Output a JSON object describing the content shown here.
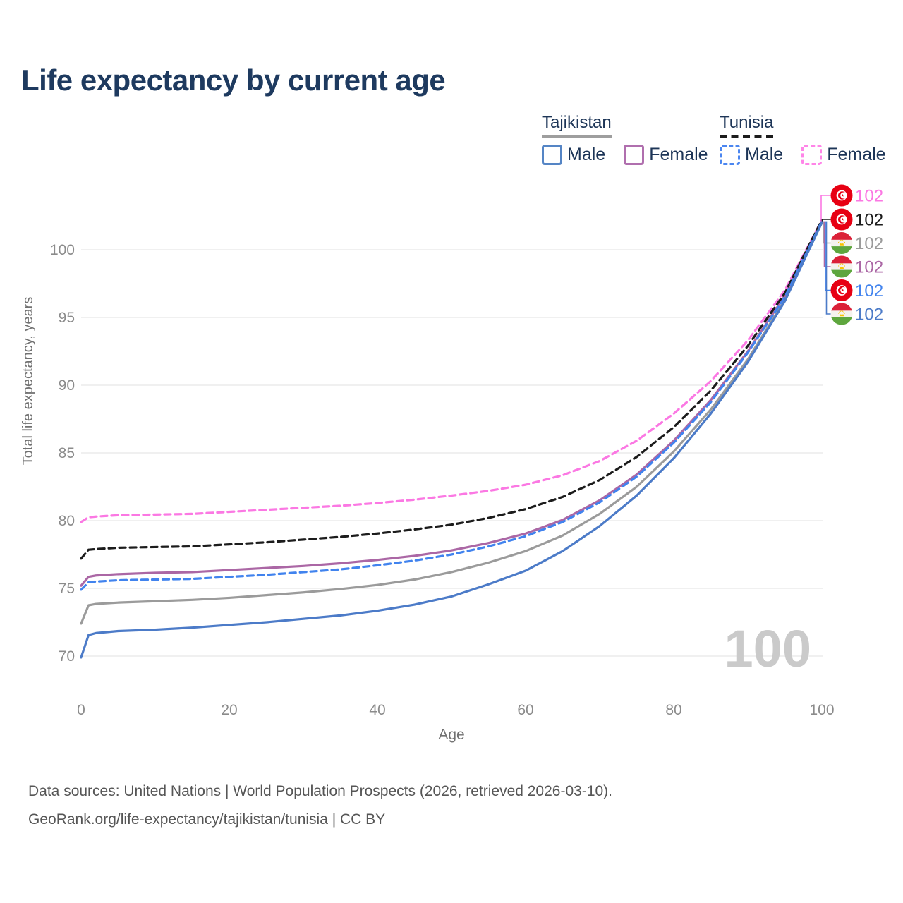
{
  "title": "Life expectancy by current age",
  "legend": {
    "groups": [
      {
        "country": "Tajikistan",
        "swatch_style": "solid",
        "swatch_color": "#9e9e9e",
        "items": [
          {
            "label": "Male",
            "box_style": "solid",
            "box_color": "#5585c5"
          },
          {
            "label": "Female",
            "box_style": "solid",
            "box_color": "#b06fae"
          }
        ]
      },
      {
        "country": "Tunisia",
        "swatch_style": "dashed",
        "swatch_color": "#1c1c1c",
        "items": [
          {
            "label": "Male",
            "box_style": "dashed",
            "box_color": "#4b86f0"
          },
          {
            "label": "Female",
            "box_style": "dashed",
            "box_color": "#ff85e8"
          }
        ]
      }
    ]
  },
  "chart_data": {
    "type": "line",
    "title": "Life expectancy by current age",
    "xlabel": "Age",
    "ylabel": "Total life expectancy, years",
    "xlim": [
      0,
      100
    ],
    "ylim": [
      69,
      103
    ],
    "x_ticks": [
      0,
      20,
      40,
      60,
      80,
      100
    ],
    "y_ticks": [
      70,
      75,
      80,
      85,
      90,
      95,
      100
    ],
    "grid": "horizontal",
    "legend_position": "top-right",
    "hover_age_indicator": "100",
    "x": [
      0,
      1,
      2,
      5,
      10,
      15,
      20,
      25,
      30,
      35,
      40,
      45,
      50,
      55,
      60,
      65,
      70,
      75,
      80,
      85,
      90,
      95,
      100
    ],
    "series": [
      {
        "name": "Tunisia Female",
        "country": "Tunisia",
        "sex": "Female",
        "color": "#fb78e3",
        "dash": true,
        "end_label": "102",
        "values": [
          79.9,
          80.25,
          80.3,
          80.4,
          80.45,
          80.5,
          80.65,
          80.8,
          80.95,
          81.1,
          81.3,
          81.55,
          81.85,
          82.2,
          82.65,
          83.35,
          84.4,
          85.9,
          87.9,
          90.3,
          93.3,
          97.0,
          102.2
        ]
      },
      {
        "name": "Tunisia",
        "country": "Tunisia",
        "sex": "Both",
        "color": "#1c1c1c",
        "dash": true,
        "end_label": "102",
        "values": [
          77.2,
          77.85,
          77.9,
          78.0,
          78.05,
          78.1,
          78.25,
          78.4,
          78.6,
          78.8,
          79.05,
          79.35,
          79.7,
          80.2,
          80.85,
          81.75,
          83.0,
          84.7,
          86.9,
          89.6,
          92.9,
          96.8,
          102.2
        ]
      },
      {
        "name": "Tajikistan",
        "country": "Tajikistan",
        "sex": "Both",
        "color": "#9b9b9b",
        "dash": false,
        "end_label": "102",
        "values": [
          72.4,
          73.75,
          73.85,
          73.95,
          74.05,
          74.15,
          74.3,
          74.5,
          74.7,
          74.95,
          75.25,
          75.65,
          76.2,
          76.9,
          77.75,
          78.9,
          80.5,
          82.5,
          85.1,
          88.2,
          91.9,
          96.3,
          102.0
        ]
      },
      {
        "name": "Tajikistan Female",
        "country": "Tajikistan",
        "sex": "Female",
        "color": "#ab67a5",
        "dash": false,
        "end_label": "102",
        "values": [
          75.2,
          75.85,
          75.95,
          76.05,
          76.15,
          76.2,
          76.35,
          76.5,
          76.65,
          76.85,
          77.1,
          77.4,
          77.8,
          78.35,
          79.05,
          80.05,
          81.5,
          83.4,
          85.9,
          88.9,
          92.5,
          96.6,
          102.1
        ]
      },
      {
        "name": "Tunisia Male",
        "country": "Tunisia",
        "sex": "Male",
        "color": "#4183ee",
        "dash": true,
        "end_label": "102",
        "values": [
          74.9,
          75.45,
          75.5,
          75.6,
          75.65,
          75.7,
          75.85,
          76.0,
          76.2,
          76.4,
          76.7,
          77.05,
          77.5,
          78.1,
          78.85,
          79.9,
          81.35,
          83.25,
          85.75,
          88.75,
          92.4,
          96.5,
          102.1
        ]
      },
      {
        "name": "Tajikistan Male",
        "country": "Tajikistan",
        "sex": "Male",
        "color": "#4c7bc8",
        "dash": false,
        "end_label": "102",
        "values": [
          69.9,
          71.55,
          71.7,
          71.85,
          71.95,
          72.1,
          72.3,
          72.5,
          72.75,
          73.0,
          73.35,
          73.8,
          74.4,
          75.3,
          76.3,
          77.75,
          79.6,
          81.85,
          84.6,
          87.9,
          91.7,
          96.2,
          102.0
        ]
      }
    ]
  },
  "watermark": "100",
  "footer": {
    "line1": "Data sources: United Nations | World Population Prospects (2026, retrieved 2026-03-10).",
    "line2": "GeoRank.org/life-expectancy/tajikistan/tunisia | CC BY"
  }
}
